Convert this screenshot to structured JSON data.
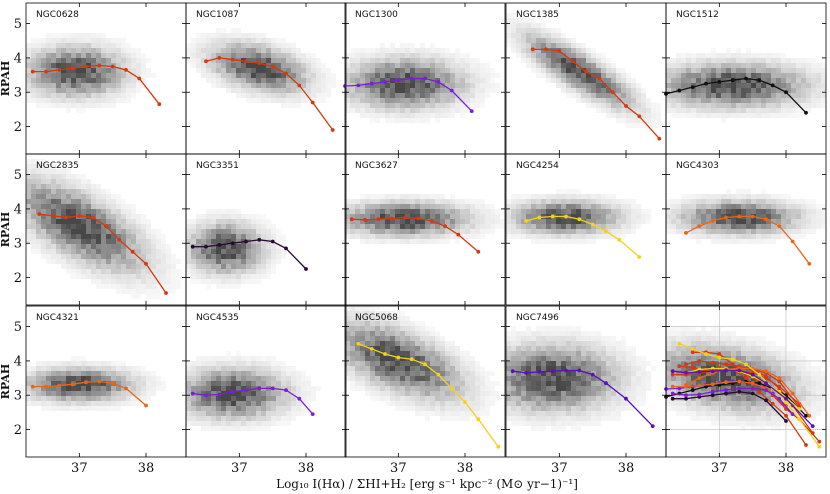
{
  "chart_data": {
    "type": "line",
    "title": "",
    "xlabel": "Log₁₀ I(Hα) / ΣHI+H₂ [erg s⁻¹ kpc⁻² (M⊙ yr−1)⁻¹]",
    "ylabel": "RPAH",
    "xlim": [
      36.2,
      38.6
    ],
    "ylim": [
      1.2,
      5.6
    ],
    "xticks": [
      "37",
      "38"
    ],
    "yticks": [
      "2",
      "3",
      "4",
      "5"
    ],
    "panels": [
      {
        "name": "NGC0628",
        "color": "#d23a12",
        "density": {
          "cx": 36.95,
          "cy": 3.6,
          "sx": 0.45,
          "sy": 0.45,
          "slope": 0.0
        },
        "x": [
          36.3,
          36.5,
          36.7,
          36.9,
          37.1,
          37.3,
          37.5,
          37.7,
          37.9,
          38.2
        ],
        "y": [
          3.6,
          3.6,
          3.65,
          3.7,
          3.75,
          3.78,
          3.75,
          3.65,
          3.4,
          2.65
        ]
      },
      {
        "name": "NGC1087",
        "color": "#d23a12",
        "density": {
          "cx": 37.3,
          "cy": 3.7,
          "sx": 0.45,
          "sy": 0.4,
          "slope": -0.4
        },
        "x": [
          36.5,
          36.7,
          36.9,
          37.1,
          37.3,
          37.5,
          37.7,
          37.9,
          38.1,
          38.4
        ],
        "y": [
          3.9,
          4.0,
          3.95,
          3.9,
          3.85,
          3.75,
          3.55,
          3.2,
          2.7,
          1.9
        ]
      },
      {
        "name": "NGC1300",
        "color": "#7b1fd6",
        "density": {
          "cx": 37.1,
          "cy": 3.25,
          "sx": 0.55,
          "sy": 0.45,
          "slope": 0.0
        },
        "x": [
          36.2,
          36.4,
          36.6,
          36.8,
          37.0,
          37.2,
          37.4,
          37.6,
          37.8,
          38.1
        ],
        "y": [
          3.18,
          3.2,
          3.25,
          3.3,
          3.35,
          3.4,
          3.4,
          3.3,
          3.05,
          2.45
        ]
      },
      {
        "name": "NGC1385",
        "color": "#d23a12",
        "density": {
          "cx": 37.3,
          "cy": 3.6,
          "sx": 0.5,
          "sy": 0.35,
          "slope": -1.1
        },
        "x": [
          36.6,
          36.8,
          37.0,
          37.2,
          37.4,
          37.6,
          37.8,
          38.0,
          38.2,
          38.5
        ],
        "y": [
          4.25,
          4.25,
          4.2,
          3.9,
          3.6,
          3.4,
          3.0,
          2.6,
          2.3,
          1.65
        ]
      },
      {
        "name": "NGC1512",
        "color": "#111111",
        "density": {
          "cx": 37.2,
          "cy": 3.2,
          "sx": 0.7,
          "sy": 0.4,
          "slope": 0.0
        },
        "x": [
          36.2,
          36.4,
          36.6,
          36.8,
          37.0,
          37.2,
          37.4,
          37.6,
          37.8,
          38.0,
          38.3
        ],
        "y": [
          2.95,
          3.05,
          3.15,
          3.25,
          3.3,
          3.35,
          3.4,
          3.35,
          3.2,
          3.0,
          2.4
        ]
      },
      {
        "name": "NGC2835",
        "color": "#d23a12",
        "density": {
          "cx": 37.0,
          "cy": 3.5,
          "sx": 0.6,
          "sy": 0.6,
          "slope": -0.9
        },
        "x": [
          36.4,
          36.6,
          36.8,
          37.0,
          37.2,
          37.4,
          37.6,
          37.8,
          38.0,
          38.3
        ],
        "y": [
          3.85,
          3.8,
          3.75,
          3.8,
          3.75,
          3.5,
          3.1,
          2.75,
          2.4,
          1.55
        ]
      },
      {
        "name": "NGC3351",
        "color": "#2a0a33",
        "density": {
          "cx": 36.8,
          "cy": 2.85,
          "sx": 0.35,
          "sy": 0.45,
          "slope": 0.0
        },
        "x": [
          36.3,
          36.5,
          36.7,
          36.9,
          37.1,
          37.3,
          37.5,
          37.7,
          38.0
        ],
        "y": [
          2.9,
          2.9,
          2.95,
          3.0,
          3.05,
          3.1,
          3.05,
          2.85,
          2.25
        ]
      },
      {
        "name": "NGC3627",
        "color": "#d23a12",
        "density": {
          "cx": 37.1,
          "cy": 3.7,
          "sx": 0.6,
          "sy": 0.3,
          "slope": 0.0
        },
        "x": [
          36.3,
          36.5,
          36.7,
          36.9,
          37.1,
          37.3,
          37.5,
          37.7,
          37.9,
          38.2
        ],
        "y": [
          3.7,
          3.68,
          3.7,
          3.72,
          3.75,
          3.72,
          3.65,
          3.5,
          3.25,
          2.75
        ]
      },
      {
        "name": "NGC4254",
        "color": "#f2d21a",
        "density": {
          "cx": 37.1,
          "cy": 3.75,
          "sx": 0.5,
          "sy": 0.3,
          "slope": 0.0
        },
        "x": [
          36.5,
          36.7,
          36.9,
          37.1,
          37.3,
          37.5,
          37.7,
          37.9,
          38.2
        ],
        "y": [
          3.65,
          3.75,
          3.78,
          3.78,
          3.7,
          3.55,
          3.35,
          3.1,
          2.6
        ]
      },
      {
        "name": "NGC4303",
        "color": "#e8661a",
        "density": {
          "cx": 37.3,
          "cy": 3.75,
          "sx": 0.55,
          "sy": 0.3,
          "slope": 0.0
        },
        "x": [
          36.5,
          36.7,
          36.9,
          37.1,
          37.3,
          37.5,
          37.7,
          37.9,
          38.1,
          38.35
        ],
        "y": [
          3.3,
          3.5,
          3.65,
          3.75,
          3.78,
          3.78,
          3.7,
          3.5,
          3.05,
          2.4
        ]
      },
      {
        "name": "NGC4321",
        "color": "#e8661a",
        "density": {
          "cx": 37.0,
          "cy": 3.3,
          "sx": 0.5,
          "sy": 0.3,
          "slope": 0.0
        },
        "x": [
          36.3,
          36.5,
          36.7,
          36.9,
          37.1,
          37.3,
          37.5,
          37.7,
          38.0
        ],
        "y": [
          3.25,
          3.25,
          3.28,
          3.32,
          3.38,
          3.4,
          3.35,
          3.2,
          2.7
        ]
      },
      {
        "name": "NGC4535",
        "color": "#7b1fd6",
        "density": {
          "cx": 36.9,
          "cy": 3.05,
          "sx": 0.5,
          "sy": 0.45,
          "slope": 0.0
        },
        "x": [
          36.3,
          36.5,
          36.7,
          36.9,
          37.1,
          37.3,
          37.5,
          37.7,
          37.9,
          38.1
        ],
        "y": [
          3.05,
          3.0,
          3.02,
          3.1,
          3.15,
          3.2,
          3.2,
          3.15,
          2.9,
          2.45
        ]
      },
      {
        "name": "NGC5068",
        "color": "#f2d21a",
        "density": {
          "cx": 37.0,
          "cy": 4.0,
          "sx": 0.6,
          "sy": 0.55,
          "slope": -0.7
        },
        "x": [
          36.4,
          36.6,
          36.8,
          37.0,
          37.2,
          37.4,
          37.6,
          37.8,
          38.0,
          38.2,
          38.5
        ],
        "y": [
          4.5,
          4.35,
          4.2,
          4.1,
          4.05,
          3.9,
          3.6,
          3.2,
          2.8,
          2.3,
          1.5
        ]
      },
      {
        "name": "NGC7496",
        "color": "#5a12b8",
        "density": {
          "cx": 36.9,
          "cy": 3.5,
          "sx": 0.6,
          "sy": 0.6,
          "slope": 0.0
        },
        "x": [
          36.3,
          36.5,
          36.7,
          36.9,
          37.1,
          37.3,
          37.5,
          37.7,
          38.0,
          38.4
        ],
        "y": [
          3.7,
          3.65,
          3.68,
          3.7,
          3.72,
          3.72,
          3.6,
          3.35,
          2.9,
          2.1
        ]
      }
    ],
    "combined_panel": {
      "name": "",
      "contains": "all galaxies overlaid"
    }
  }
}
